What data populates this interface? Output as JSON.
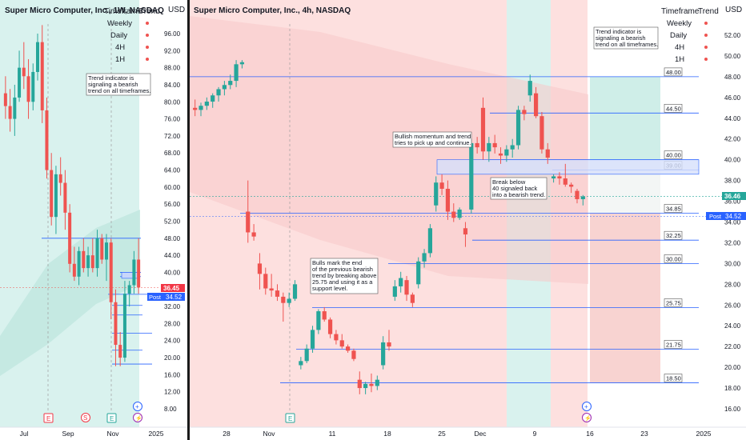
{
  "colors": {
    "up": "#26a69a",
    "down": "#ef5350",
    "level_line": "#2962ff",
    "bear_zone": "#fde0df",
    "bull_zone": "#d9f2ee",
    "divider": "#1a1a1a",
    "price_tag_red": "#f23645",
    "price_tag_blue": "#2962ff"
  },
  "left_panel": {
    "title": "Super Micro Computer, Inc., 1W, NASDAQ",
    "currency": "USD",
    "timeframe_table": {
      "header": [
        "Timeframe",
        "Trend"
      ],
      "rows": [
        "Weekly",
        "Daily",
        "4H",
        "1H"
      ]
    },
    "annotation": [
      "Trend indicator is",
      "signaling a bearish",
      "trend on all timeframes."
    ],
    "price_tag_last": "36.45",
    "price_tag_post_label": "Post",
    "price_tag_post": "34.52",
    "event_markers": [
      "E",
      "S",
      "E",
      "⚡"
    ]
  },
  "right_panel": {
    "title": "Super Micro Computer, Inc., 4h, NASDAQ",
    "currency": "USD",
    "timeframe_table": {
      "header": [
        "Timeframe",
        "Trend"
      ],
      "rows": [
        "Weekly",
        "Daily",
        "4H",
        "1H"
      ]
    },
    "annotations": {
      "bearish_trend": [
        "Trend indicator is",
        "signaling a bearish",
        "trend on all timeframes."
      ],
      "bullish_momentum": [
        "Bullish momentum and trend",
        "tries to pick up and continue."
      ],
      "break_below": [
        "Break below",
        "40 signaled back",
        "into a bearish trend."
      ],
      "bulls_mark": [
        "Bulls mark the end",
        "of the previous bearish",
        "trend by breaking above",
        "25.75 and using it as a",
        "support level."
      ]
    },
    "price_tag_last": "36.46",
    "price_tag_post_label": "Post",
    "price_tag_post": "34.52",
    "event_markers": [
      "E",
      "⚡"
    ]
  },
  "chart_data": [
    {
      "type": "candlestick",
      "title": "Super Micro Computer, Inc., 1W, NASDAQ",
      "timeframe": "1W",
      "y_axis": {
        "ticks": [
          8.0,
          12.0,
          16.0,
          20.0,
          24.0,
          28.0,
          32.0,
          36.0,
          40.0,
          44.0,
          48.0,
          52.0,
          56.0,
          60.0,
          64.0,
          68.0,
          72.0,
          76.0,
          80.0,
          84.0,
          88.0,
          92.0,
          96.0
        ],
        "range": [
          6,
          100
        ]
      },
      "x_axis": {
        "labels": [
          "Jul",
          "Sep",
          "Nov",
          "2025"
        ]
      },
      "candles": [
        {
          "o": 82,
          "h": 86,
          "l": 76,
          "c": 79
        },
        {
          "o": 79,
          "h": 83,
          "l": 73,
          "c": 76
        },
        {
          "o": 76,
          "h": 84,
          "l": 72,
          "c": 81
        },
        {
          "o": 81,
          "h": 92,
          "l": 80,
          "c": 88
        },
        {
          "o": 88,
          "h": 94,
          "l": 83,
          "c": 86
        },
        {
          "o": 86,
          "h": 90,
          "l": 76,
          "c": 80
        },
        {
          "o": 80,
          "h": 89,
          "l": 78,
          "c": 87
        },
        {
          "o": 87,
          "h": 96,
          "l": 85,
          "c": 94
        },
        {
          "o": 94,
          "h": 98,
          "l": 75,
          "c": 78
        },
        {
          "o": 78,
          "h": 81,
          "l": 62,
          "c": 64
        },
        {
          "o": 64,
          "h": 68,
          "l": 51,
          "c": 53
        },
        {
          "o": 53,
          "h": 65,
          "l": 49,
          "c": 63
        },
        {
          "o": 63,
          "h": 67,
          "l": 58,
          "c": 61
        },
        {
          "o": 61,
          "h": 64,
          "l": 50,
          "c": 54
        },
        {
          "o": 54,
          "h": 56,
          "l": 40,
          "c": 42
        },
        {
          "o": 42,
          "h": 46,
          "l": 38,
          "c": 39
        },
        {
          "o": 39,
          "h": 46,
          "l": 37,
          "c": 45
        },
        {
          "o": 45,
          "h": 48,
          "l": 40,
          "c": 41
        },
        {
          "o": 41,
          "h": 46,
          "l": 39,
          "c": 44
        },
        {
          "o": 44,
          "h": 48,
          "l": 40,
          "c": 41
        },
        {
          "o": 41,
          "h": 50,
          "l": 39,
          "c": 48
        },
        {
          "o": 48,
          "h": 49,
          "l": 42,
          "c": 43
        },
        {
          "o": 43,
          "h": 49,
          "l": 38,
          "c": 47
        },
        {
          "o": 47,
          "h": 48,
          "l": 29,
          "c": 33
        },
        {
          "o": 33,
          "h": 36,
          "l": 18,
          "c": 23
        },
        {
          "o": 23,
          "h": 26,
          "l": 18,
          "c": 20
        },
        {
          "o": 20,
          "h": 38,
          "l": 19,
          "c": 35
        },
        {
          "o": 35,
          "h": 38,
          "l": 32,
          "c": 37
        },
        {
          "o": 37,
          "h": 45,
          "l": 35,
          "c": 43
        },
        {
          "o": 43,
          "h": 48,
          "l": 35,
          "c": 36.45
        }
      ],
      "horizontal_levels": [
        48.0,
        40.0,
        39.0,
        34.85,
        32.25,
        30.0,
        25.75,
        21.75,
        18.5
      ]
    },
    {
      "type": "candlestick",
      "title": "Super Micro Computer, Inc., 4h, NASDAQ",
      "timeframe": "4h",
      "y_axis": {
        "ticks": [
          16.0,
          18.0,
          20.0,
          22.0,
          24.0,
          26.0,
          28.0,
          30.0,
          32.0,
          34.0,
          36.0,
          38.0,
          40.0,
          42.0,
          44.0,
          46.0,
          48.0,
          50.0,
          52.0
        ],
        "range": [
          15,
          54
        ]
      },
      "x_axis": {
        "labels": [
          "28",
          "Nov",
          "11",
          "18",
          "25",
          "Dec",
          "9",
          "16",
          "23",
          "2025"
        ]
      },
      "candles": [
        {
          "o": 45,
          "h": 45.8,
          "l": 44.2,
          "c": 44.8
        },
        {
          "o": 44.8,
          "h": 45.5,
          "l": 44.2,
          "c": 45.2
        },
        {
          "o": 45.2,
          "h": 46,
          "l": 44.8,
          "c": 45.6
        },
        {
          "o": 45.6,
          "h": 46.4,
          "l": 45,
          "c": 46.2
        },
        {
          "o": 46.2,
          "h": 47,
          "l": 45.6,
          "c": 46.8
        },
        {
          "o": 46.8,
          "h": 47.6,
          "l": 46.2,
          "c": 47.2
        },
        {
          "o": 47.2,
          "h": 48.2,
          "l": 46.8,
          "c": 47.6
        },
        {
          "o": 47.6,
          "h": 49.6,
          "l": 47,
          "c": 49.2
        },
        {
          "o": 49.2,
          "h": 49.6,
          "l": 48.8,
          "c": 49.4
        },
        {
          "o": 35,
          "h": 38,
          "l": 32,
          "c": 33
        },
        {
          "o": 33,
          "h": 33.8,
          "l": 32.2,
          "c": 32.6
        },
        {
          "o": 30,
          "h": 31,
          "l": 27.5,
          "c": 29
        },
        {
          "o": 29,
          "h": 29.6,
          "l": 27,
          "c": 27.6
        },
        {
          "o": 27.6,
          "h": 29,
          "l": 26.8,
          "c": 27.4
        },
        {
          "o": 27.4,
          "h": 28,
          "l": 26.4,
          "c": 26.8
        },
        {
          "o": 26.8,
          "h": 27.2,
          "l": 24.4,
          "c": 26.2
        },
        {
          "o": 26.2,
          "h": 27.2,
          "l": 25.8,
          "c": 26.6
        },
        {
          "o": 26.6,
          "h": 28.4,
          "l": 26.4,
          "c": 28
        },
        {
          "o": 20.2,
          "h": 21,
          "l": 19.8,
          "c": 20.6
        },
        {
          "o": 20.6,
          "h": 22.2,
          "l": 20.4,
          "c": 21.8
        },
        {
          "o": 21.8,
          "h": 24,
          "l": 21.4,
          "c": 23.6
        },
        {
          "o": 23.6,
          "h": 25.6,
          "l": 23.2,
          "c": 25.4
        },
        {
          "o": 25.4,
          "h": 25.8,
          "l": 24.4,
          "c": 24.6
        },
        {
          "o": 24.6,
          "h": 24.8,
          "l": 22.8,
          "c": 23.2
        },
        {
          "o": 23.2,
          "h": 23.6,
          "l": 22.2,
          "c": 22.6
        },
        {
          "o": 22.6,
          "h": 23.2,
          "l": 21.8,
          "c": 22
        },
        {
          "o": 22,
          "h": 22.2,
          "l": 21.4,
          "c": 21.6
        },
        {
          "o": 21.6,
          "h": 21.8,
          "l": 20.6,
          "c": 20.8
        },
        {
          "o": 18.8,
          "h": 19.6,
          "l": 17.4,
          "c": 18
        },
        {
          "o": 18,
          "h": 18.6,
          "l": 17.4,
          "c": 18.4
        },
        {
          "o": 18.4,
          "h": 19.4,
          "l": 17.6,
          "c": 18.2
        },
        {
          "o": 18.2,
          "h": 19.2,
          "l": 17.8,
          "c": 18.8
        },
        {
          "o": 20.2,
          "h": 23,
          "l": 19.8,
          "c": 22.4
        },
        {
          "o": 22.4,
          "h": 23.6,
          "l": 21.6,
          "c": 22
        },
        {
          "o": 26.8,
          "h": 28.4,
          "l": 26.4,
          "c": 27.8
        },
        {
          "o": 27.8,
          "h": 29.2,
          "l": 27.2,
          "c": 28.6
        },
        {
          "o": 28.4,
          "h": 28.8,
          "l": 26.4,
          "c": 27
        },
        {
          "o": 27,
          "h": 27.2,
          "l": 25.8,
          "c": 26.2
        },
        {
          "o": 28,
          "h": 30.6,
          "l": 27.6,
          "c": 30.2
        },
        {
          "o": 30.2,
          "h": 31.4,
          "l": 29.6,
          "c": 31
        },
        {
          "o": 31,
          "h": 33.8,
          "l": 30.6,
          "c": 33.4
        },
        {
          "o": 35.6,
          "h": 38.4,
          "l": 35,
          "c": 37.8
        },
        {
          "o": 37.8,
          "h": 38.6,
          "l": 36.6,
          "c": 37.2
        },
        {
          "o": 37.2,
          "h": 38,
          "l": 34.2,
          "c": 35
        },
        {
          "o": 35,
          "h": 35.8,
          "l": 34,
          "c": 34.4
        },
        {
          "o": 34.4,
          "h": 35.4,
          "l": 34.2,
          "c": 35.2
        },
        {
          "o": 33.4,
          "h": 34,
          "l": 31.6,
          "c": 32.8
        },
        {
          "o": 35.2,
          "h": 42,
          "l": 34.8,
          "c": 41.6
        },
        {
          "o": 41.6,
          "h": 42.2,
          "l": 40.6,
          "c": 41.2
        },
        {
          "o": 45,
          "h": 46,
          "l": 40,
          "c": 40.8
        },
        {
          "o": 40.8,
          "h": 42.2,
          "l": 39.8,
          "c": 41.6
        },
        {
          "o": 41.6,
          "h": 42.4,
          "l": 40.6,
          "c": 41.2
        },
        {
          "o": 40.6,
          "h": 41.2,
          "l": 39.6,
          "c": 40.4
        },
        {
          "o": 40.4,
          "h": 41.4,
          "l": 39.8,
          "c": 41
        },
        {
          "o": 41,
          "h": 42,
          "l": 40.2,
          "c": 41.4
        },
        {
          "o": 41.4,
          "h": 45.2,
          "l": 41,
          "c": 44.8
        },
        {
          "o": 44.8,
          "h": 45.2,
          "l": 43.8,
          "c": 44.4
        },
        {
          "o": 46.2,
          "h": 48.2,
          "l": 45.6,
          "c": 47.6
        },
        {
          "o": 46.4,
          "h": 47,
          "l": 44,
          "c": 44.2
        },
        {
          "o": 44.2,
          "h": 44.6,
          "l": 40.6,
          "c": 41
        },
        {
          "o": 41,
          "h": 41.6,
          "l": 39.6,
          "c": 40.2
        },
        {
          "o": 38.2,
          "h": 38.6,
          "l": 37.8,
          "c": 38.4
        },
        {
          "o": 38.4,
          "h": 38.8,
          "l": 37.6,
          "c": 38.2
        },
        {
          "o": 38.2,
          "h": 39.6,
          "l": 37.4,
          "c": 37.6
        },
        {
          "o": 37.6,
          "h": 37.8,
          "l": 36.8,
          "c": 37.4
        },
        {
          "o": 37,
          "h": 37.2,
          "l": 35.8,
          "c": 36.2
        },
        {
          "o": 36.2,
          "h": 36.6,
          "l": 35.6,
          "c": 36.46
        }
      ],
      "horizontal_levels": [
        48.0,
        44.5,
        40.0,
        39.0,
        34.85,
        32.25,
        30.0,
        25.75,
        21.75,
        18.5
      ],
      "level_labels": [
        "48.00",
        "44.50",
        "40.00",
        "39.00",
        "34.85",
        "32.25",
        "30.00",
        "25.75",
        "21.75",
        "18.50"
      ],
      "zone": [
        38.6,
        40.0
      ]
    }
  ]
}
